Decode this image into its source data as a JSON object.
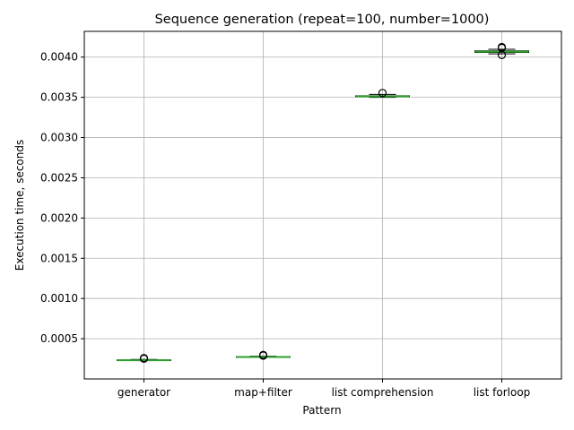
{
  "chart_data": {
    "type": "box",
    "title": "Sequence generation (repeat=100, number=1000)",
    "xlabel": "Pattern",
    "ylabel": "Execution time, seconds",
    "ylim": [
      0.0,
      0.00432
    ],
    "yticks": [
      "0.0005",
      "0.0010",
      "0.0015",
      "0.0020",
      "0.0025",
      "0.0030",
      "0.0035",
      "0.0040"
    ],
    "grid": true,
    "categories": [
      "generator",
      "map+filter",
      "list comprehension",
      "list forloop"
    ],
    "boxes": [
      {
        "name": "generator",
        "whislo": 0.000228,
        "q1": 0.000231,
        "med": 0.000233,
        "q3": 0.000236,
        "whishi": 0.000242,
        "fliers": [
          0.000252,
          0.000259
        ]
      },
      {
        "name": "map+filter",
        "whislo": 0.000268,
        "q1": 0.000271,
        "med": 0.000273,
        "q3": 0.000276,
        "whishi": 0.000282,
        "fliers": [
          0.00029,
          0.000298
        ]
      },
      {
        "name": "list comprehension",
        "whislo": 0.0035,
        "q1": 0.003508,
        "med": 0.003513,
        "q3": 0.00352,
        "whishi": 0.003536,
        "fliers": [
          0.003554
        ]
      },
      {
        "name": "list forloop",
        "whislo": 0.00404,
        "q1": 0.004058,
        "med": 0.004068,
        "q3": 0.004078,
        "whishi": 0.004098,
        "fliers": [
          0.004026,
          0.004115,
          0.004125
        ]
      }
    ],
    "colors": {
      "box": "#000000",
      "median": "#2ca02c",
      "grid": "#b0b0b0",
      "flier": "#000000"
    }
  }
}
